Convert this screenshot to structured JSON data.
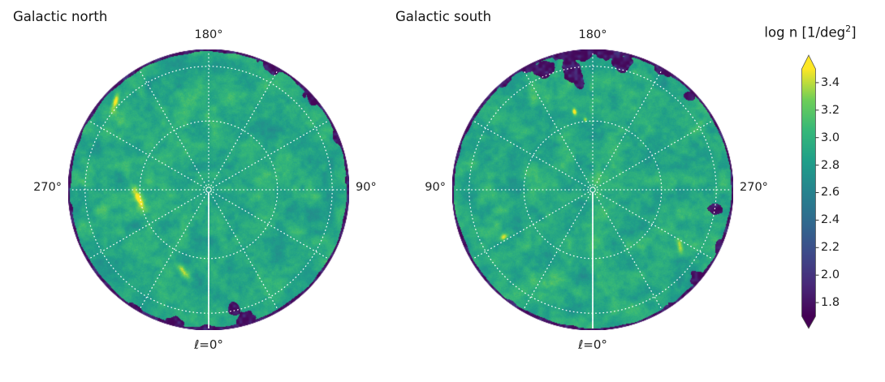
{
  "figure": {
    "background": "#ffffff",
    "text_color": "#151515"
  },
  "panels": [
    {
      "id": "north",
      "title": "Galactic north",
      "top_label": "180°",
      "right_label": "90°",
      "bottom_label": "ℓ=0°",
      "left_label": "270°"
    },
    {
      "id": "south",
      "title": "Galactic south",
      "top_label": "180°",
      "right_label": "270°",
      "bottom_label": "ℓ=0°",
      "left_label": "90°"
    }
  ],
  "colorbar": {
    "label_pre": "log n [1/deg",
    "label_sup": "2",
    "label_post": "]",
    "tick_labels": [
      "3.4",
      "3.2",
      "3.0",
      "2.8",
      "2.6",
      "2.4",
      "2.2",
      "2.0",
      "1.8"
    ]
  },
  "chart_data": {
    "type": "heatmap",
    "projection": "polar azimuthal views of the two galactic hemispheres",
    "quantity": "log n [1/deg²] (log source density per square degree)",
    "colorbar": {
      "label": "log n [1/deg²]",
      "ticks": [
        3.4,
        3.2,
        3.0,
        2.8,
        2.6,
        2.4,
        2.2,
        2.0,
        1.8
      ],
      "range": [
        1.7,
        3.5
      ],
      "extend": "both",
      "cmap": "viridis",
      "cmap_stops": [
        "#440154",
        "#482878",
        "#3e4989",
        "#31688e",
        "#26828e",
        "#1f9e89",
        "#35b779",
        "#6ece58",
        "#fde725"
      ]
    },
    "grid": {
      "spoke_step_deg": 30,
      "circle_radii_frac": [
        0.49,
        0.88
      ],
      "style": "white dotted graticule",
      "zero_line": "solid white radial line at ℓ=0°",
      "color": "#ffffff"
    },
    "panels": [
      {
        "title": "Galactic north",
        "angle_labels": {
          "top": "180°",
          "right": "90°",
          "bottom": "ℓ=0°",
          "left": "270°"
        },
        "base_level": 2.92,
        "noise_amplitude": 0.29,
        "underdense_value": 1.75,
        "underdense_regions": [
          {
            "angle_deg": 63,
            "radius_frac": 1.0,
            "sigma_tan": 0.085,
            "sigma_rad": 0.045
          },
          {
            "angle_deg": 42,
            "radius_frac": 0.99,
            "sigma_tan": 0.05,
            "sigma_rad": 0.04
          },
          {
            "angle_deg": 22,
            "radius_frac": 1.0,
            "sigma_tan": 0.045,
            "sigma_rad": 0.03
          },
          {
            "angle_deg": 4,
            "radius_frac": 1.0,
            "sigma_tan": 0.03,
            "sigma_rad": 0.02
          },
          {
            "angle_deg": -74,
            "radius_frac": 0.97,
            "sigma_tan": 0.05,
            "sigma_rad": 0.05
          },
          {
            "angle_deg": -78,
            "radius_frac": 0.87,
            "sigma_tan": 0.028,
            "sigma_rad": 0.04
          },
          {
            "angle_deg": -90,
            "radius_frac": 1.0,
            "sigma_tan": 0.05,
            "sigma_rad": 0.03
          },
          {
            "angle_deg": -105,
            "radius_frac": 0.99,
            "sigma_tan": 0.06,
            "sigma_rad": 0.04
          },
          {
            "angle_deg": -122,
            "radius_frac": 1.0,
            "sigma_tan": 0.05,
            "sigma_rad": 0.025
          },
          {
            "angle_deg": 188,
            "radius_frac": 1.0,
            "sigma_tan": 0.03,
            "sigma_rad": 0.018
          }
        ],
        "overdense_streaks": [
          {
            "angle_deg": 137,
            "radius_frac": 0.91,
            "sigma_along": 0.05,
            "sigma_across": 0.016,
            "amplitude": 0.6,
            "orient_deg": 75
          },
          {
            "angle_deg": 187,
            "radius_frac": 0.5,
            "sigma_along": 0.055,
            "sigma_across": 0.018,
            "amplitude": 0.65,
            "orient_deg": -66
          },
          {
            "angle_deg": 253,
            "radius_frac": 0.61,
            "sigma_along": 0.05,
            "sigma_across": 0.02,
            "amplitude": 0.65,
            "orient_deg": -50
          }
        ]
      },
      {
        "title": "Galactic south",
        "angle_labels": {
          "top": "180°",
          "right": "270°",
          "bottom": "ℓ=0°",
          "left": "90°"
        },
        "base_level": 2.92,
        "noise_amplitude": 0.29,
        "underdense_value": 1.75,
        "underdense_regions": [
          {
            "angle_deg": 97,
            "radius_frac": 1.0,
            "sigma_tan": 0.12,
            "sigma_rad": 0.06
          },
          {
            "angle_deg": 85,
            "radius_frac": 1.0,
            "sigma_tan": 0.09,
            "sigma_rad": 0.05
          },
          {
            "angle_deg": 100,
            "radius_frac": 0.88,
            "sigma_tan": 0.05,
            "sigma_rad": 0.07
          },
          {
            "angle_deg": 97,
            "radius_frac": 0.78,
            "sigma_tan": 0.025,
            "sigma_rad": 0.05
          },
          {
            "angle_deg": 77,
            "radius_frac": 0.93,
            "sigma_tan": 0.06,
            "sigma_rad": 0.05
          },
          {
            "angle_deg": 112,
            "radius_frac": 0.93,
            "sigma_tan": 0.055,
            "sigma_rad": 0.05
          },
          {
            "angle_deg": 118,
            "radius_frac": 1.0,
            "sigma_tan": 0.05,
            "sigma_rad": 0.035
          },
          {
            "angle_deg": 60,
            "radius_frac": 1.0,
            "sigma_tan": 0.06,
            "sigma_rad": 0.04
          },
          {
            "angle_deg": 129,
            "radius_frac": 1.0,
            "sigma_tan": 0.045,
            "sigma_rad": 0.028
          },
          {
            "angle_deg": 44,
            "radius_frac": 0.96,
            "sigma_tan": 0.03,
            "sigma_rad": 0.03
          },
          {
            "angle_deg": -9,
            "radius_frac": 0.885,
            "sigma_tan": 0.028,
            "sigma_rad": 0.04
          },
          {
            "angle_deg": -24,
            "radius_frac": 1.0,
            "sigma_tan": 0.04,
            "sigma_rad": 0.035
          },
          {
            "angle_deg": -40,
            "radius_frac": 0.98,
            "sigma_tan": 0.04,
            "sigma_rad": 0.045
          },
          {
            "angle_deg": -57,
            "radius_frac": 1.0,
            "sigma_tan": 0.035,
            "sigma_rad": 0.025
          },
          {
            "angle_deg": -98,
            "radius_frac": 1.0,
            "sigma_tan": 0.03,
            "sigma_rad": 0.015
          },
          {
            "angle_deg": -125,
            "radius_frac": 1.0,
            "sigma_tan": 0.035,
            "sigma_rad": 0.02
          }
        ],
        "overdense_streaks": [
          {
            "angle_deg": 103,
            "radius_frac": 0.57,
            "sigma_along": 0.018,
            "sigma_across": 0.01,
            "amplitude": 0.7,
            "orient_deg": 103
          },
          {
            "angle_deg": 96,
            "radius_frac": 0.5,
            "sigma_along": 0.012,
            "sigma_across": 0.009,
            "amplitude": 0.5,
            "orient_deg": 96
          },
          {
            "angle_deg": 208,
            "radius_frac": 0.72,
            "sigma_along": 0.02,
            "sigma_across": 0.015,
            "amplitude": 0.75,
            "orient_deg": 208
          },
          {
            "angle_deg": -33,
            "radius_frac": 0.74,
            "sigma_along": 0.04,
            "sigma_across": 0.015,
            "amplitude": 0.5,
            "orient_deg": -80
          },
          {
            "angle_deg": 163,
            "radius_frac": 0.47,
            "sigma_along": 0.05,
            "sigma_across": 0.05,
            "amplitude": 0.18,
            "orient_deg": 163
          },
          {
            "angle_deg": 127,
            "radius_frac": 0.55,
            "sigma_along": 0.06,
            "sigma_across": 0.03,
            "amplitude": 0.15,
            "orient_deg": 127
          }
        ]
      }
    ]
  }
}
